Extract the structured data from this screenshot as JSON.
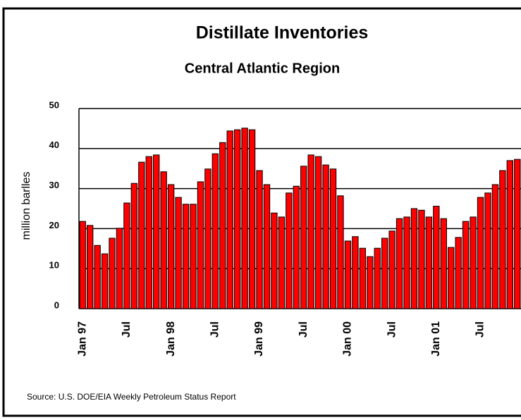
{
  "chart_data": {
    "type": "bar",
    "title": "Distillate Inventories",
    "subtitle": "Central Atlantic Region",
    "y_label": "million barlles",
    "source": "Source: U.S. DOE/EIA Weekly Petroleum Status Report",
    "categories": [
      "Jan 97",
      null,
      null,
      null,
      null,
      null,
      "Jul",
      null,
      null,
      null,
      null,
      null,
      "Jan 98",
      null,
      null,
      null,
      null,
      null,
      "Jul",
      null,
      null,
      null,
      null,
      null,
      "Jan 99",
      null,
      null,
      null,
      null,
      null,
      "Jul",
      null,
      null,
      null,
      null,
      null,
      "Jan 00",
      null,
      null,
      null,
      null,
      null,
      "Jul",
      null,
      null,
      null,
      null,
      null,
      "Jan 01",
      null,
      null,
      null,
      null,
      null,
      "Jul",
      null,
      null,
      null,
      null,
      null
    ],
    "values": [
      21.8,
      20.8,
      15.8,
      13.7,
      17.6,
      20.1,
      26.4,
      31.3,
      36.6,
      38,
      38.4,
      34.2,
      31,
      27.8,
      26.1,
      26.1,
      31.7,
      34.9,
      38.7,
      41.5,
      44.4,
      44.7,
      45.1,
      44.7,
      34.5,
      31,
      23.9,
      22.9,
      28.9,
      30.6,
      35.6,
      38.4,
      38,
      35.9,
      34.9,
      28.2,
      16.9,
      18,
      15.1,
      13,
      15.1,
      17.6,
      19.4,
      22.5,
      22.9,
      25,
      24.6,
      22.9,
      25.6,
      22.5,
      15.3,
      17.8,
      21.8,
      22.9,
      27.8,
      28.9,
      31,
      34.5,
      37,
      37.3
    ],
    "color": "#ff0000",
    "ylim": [
      0,
      50
    ],
    "yticks": [
      0,
      10,
      20,
      30,
      40,
      50
    ],
    "grid": true
  }
}
